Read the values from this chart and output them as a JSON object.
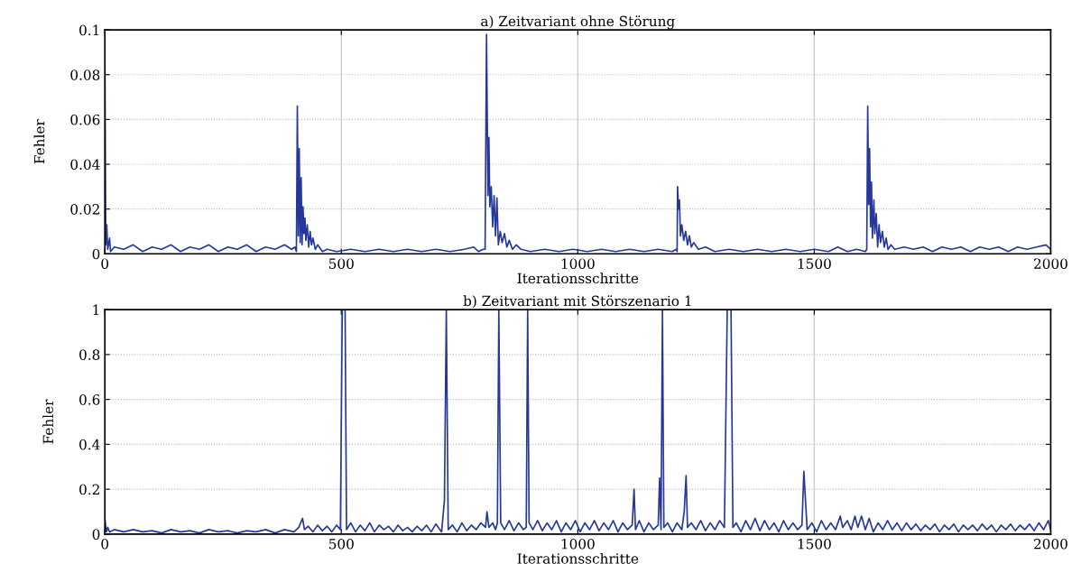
{
  "chart_data": [
    {
      "type": "line",
      "title": "a) Zeitvariant ohne Störung",
      "xlabel": "Iterationsschritte",
      "ylabel": "Fehler",
      "xlim": [
        0,
        2000
      ],
      "xticks": [
        0,
        500,
        1000,
        1500,
        2000
      ],
      "ylim": [
        0,
        0.1
      ],
      "yticks": [
        0,
        0.02,
        0.04,
        0.06,
        0.08,
        0.1
      ],
      "grid": true,
      "x": [
        0,
        2,
        4,
        6,
        10,
        12,
        20,
        40,
        60,
        80,
        100,
        120,
        140,
        160,
        180,
        200,
        220,
        240,
        260,
        280,
        300,
        320,
        340,
        360,
        380,
        395,
        402,
        405,
        407,
        409,
        411,
        413,
        415,
        417,
        419,
        421,
        423,
        425,
        428,
        431,
        434,
        437,
        440,
        445,
        450,
        460,
        470,
        490,
        520,
        550,
        580,
        610,
        640,
        670,
        700,
        730,
        760,
        780,
        790,
        800,
        804,
        807,
        810,
        812,
        814,
        817,
        820,
        823,
        826,
        829,
        832,
        836,
        840,
        845,
        850,
        855,
        862,
        870,
        880,
        900,
        930,
        960,
        990,
        1020,
        1050,
        1080,
        1110,
        1140,
        1170,
        1200,
        1208,
        1210,
        1211,
        1213,
        1215,
        1217,
        1220,
        1224,
        1228,
        1232,
        1236,
        1240,
        1245,
        1255,
        1270,
        1290,
        1320,
        1350,
        1380,
        1410,
        1440,
        1470,
        1500,
        1530,
        1550,
        1570,
        1590,
        1608,
        1611,
        1613,
        1615,
        1617,
        1619,
        1621,
        1623,
        1626,
        1628,
        1631,
        1634,
        1637,
        1640,
        1644,
        1648,
        1652,
        1656,
        1662,
        1670,
        1690,
        1710,
        1730,
        1750,
        1770,
        1790,
        1810,
        1830,
        1850,
        1870,
        1890,
        1910,
        1930,
        1950,
        1970,
        1990,
        2000
      ],
      "series": [
        {
          "color": "#26379b",
          "values": [
            0.085,
            0.004,
            0.013,
            0.002,
            0.007,
            0.001,
            0.003,
            0.002,
            0.004,
            0.001,
            0.003,
            0.002,
            0.004,
            0.001,
            0.003,
            0.002,
            0.004,
            0.001,
            0.003,
            0.002,
            0.004,
            0.001,
            0.003,
            0.002,
            0.004,
            0.002,
            0.003,
            0.001,
            0.066,
            0.008,
            0.047,
            0.005,
            0.034,
            0.004,
            0.021,
            0.009,
            0.016,
            0.006,
            0.013,
            0.003,
            0.01,
            0.004,
            0.007,
            0.002,
            0.004,
            0.001,
            0.002,
            0.001,
            0.002,
            0.001,
            0.002,
            0.001,
            0.002,
            0.001,
            0.002,
            0.001,
            0.002,
            0.003,
            0.001,
            0.002,
            0.002,
            0.098,
            0.026,
            0.052,
            0.021,
            0.03,
            0.012,
            0.026,
            0.008,
            0.025,
            0.004,
            0.01,
            0.005,
            0.009,
            0.003,
            0.006,
            0.002,
            0.004,
            0.002,
            0.001,
            0.002,
            0.001,
            0.002,
            0.001,
            0.002,
            0.001,
            0.002,
            0.001,
            0.002,
            0.001,
            0.002,
            0.001,
            0.03,
            0.02,
            0.024,
            0.008,
            0.013,
            0.006,
            0.01,
            0.004,
            0.008,
            0.003,
            0.005,
            0.002,
            0.003,
            0.001,
            0.002,
            0.001,
            0.002,
            0.001,
            0.002,
            0.001,
            0.002,
            0.001,
            0.003,
            0.001,
            0.002,
            0.001,
            0.002,
            0.066,
            0.022,
            0.047,
            0.012,
            0.032,
            0.007,
            0.024,
            0.009,
            0.018,
            0.003,
            0.013,
            0.005,
            0.01,
            0.003,
            0.007,
            0.002,
            0.004,
            0.002,
            0.003,
            0.002,
            0.003,
            0.001,
            0.003,
            0.002,
            0.003,
            0.001,
            0.003,
            0.002,
            0.003,
            0.001,
            0.003,
            0.002,
            0.003,
            0.004,
            0.002
          ]
        }
      ]
    },
    {
      "type": "line",
      "title": "b) Zeitvariant mit Störszenario 1",
      "xlabel": "Iterationsschritte",
      "ylabel": "Fehler",
      "xlim": [
        0,
        2000
      ],
      "xticks": [
        0,
        500,
        1000,
        1500,
        2000
      ],
      "ylim": [
        0,
        1
      ],
      "yticks": [
        0,
        0.2,
        0.4,
        0.6,
        0.8,
        1
      ],
      "grid": true,
      "x": [
        0,
        3,
        6,
        10,
        20,
        40,
        60,
        80,
        100,
        120,
        140,
        160,
        180,
        200,
        220,
        240,
        260,
        280,
        300,
        320,
        340,
        360,
        380,
        400,
        410,
        418,
        422,
        430,
        440,
        450,
        460,
        470,
        480,
        490,
        498,
        502,
        505,
        508,
        511,
        520,
        530,
        540,
        550,
        560,
        570,
        580,
        590,
        600,
        610,
        620,
        630,
        640,
        650,
        660,
        670,
        680,
        690,
        700,
        712,
        718,
        722,
        726,
        735,
        745,
        755,
        765,
        775,
        785,
        795,
        805,
        808,
        812,
        820,
        826,
        830,
        833,
        837,
        845,
        855,
        865,
        875,
        885,
        891,
        894,
        897,
        905,
        915,
        925,
        935,
        945,
        955,
        965,
        975,
        985,
        995,
        1005,
        1015,
        1025,
        1035,
        1045,
        1055,
        1065,
        1075,
        1085,
        1095,
        1105,
        1115,
        1119,
        1122,
        1130,
        1140,
        1150,
        1160,
        1170,
        1173,
        1176,
        1179,
        1182,
        1190,
        1200,
        1210,
        1220,
        1225,
        1229,
        1232,
        1240,
        1250,
        1260,
        1270,
        1280,
        1290,
        1300,
        1310,
        1316,
        1320,
        1324,
        1328,
        1335,
        1345,
        1355,
        1365,
        1375,
        1385,
        1395,
        1405,
        1415,
        1425,
        1435,
        1445,
        1455,
        1465,
        1474,
        1478,
        1482,
        1485,
        1495,
        1505,
        1515,
        1525,
        1535,
        1545,
        1555,
        1560,
        1570,
        1578,
        1586,
        1592,
        1600,
        1608,
        1616,
        1625,
        1635,
        1645,
        1655,
        1665,
        1675,
        1685,
        1695,
        1705,
        1715,
        1725,
        1735,
        1745,
        1755,
        1765,
        1775,
        1785,
        1795,
        1805,
        1815,
        1825,
        1835,
        1845,
        1855,
        1865,
        1875,
        1885,
        1895,
        1905,
        1915,
        1925,
        1935,
        1945,
        1955,
        1965,
        1975,
        1985,
        1995,
        2000
      ],
      "series": [
        {
          "color": "#26379b",
          "values": [
            0.07,
            0.01,
            0.03,
            0.01,
            0.02,
            0.01,
            0.02,
            0.01,
            0.015,
            0.005,
            0.02,
            0.01,
            0.015,
            0.005,
            0.02,
            0.01,
            0.015,
            0.005,
            0.015,
            0.01,
            0.02,
            0.005,
            0.02,
            0.01,
            0.03,
            0.07,
            0.02,
            0.035,
            0.01,
            0.04,
            0.015,
            0.035,
            0.01,
            0.04,
            0.02,
            1,
            1,
            1,
            0.02,
            0.05,
            0.01,
            0.04,
            0.015,
            0.05,
            0.01,
            0.04,
            0.02,
            0.035,
            0.01,
            0.04,
            0.015,
            0.03,
            0.01,
            0.035,
            0.015,
            0.04,
            0.01,
            0.045,
            0.01,
            0.15,
            1,
            0.02,
            0.04,
            0.01,
            0.05,
            0.015,
            0.04,
            0.02,
            0.05,
            0.03,
            0.1,
            0.03,
            0.05,
            0.02,
            0.05,
            1,
            0.05,
            0.02,
            0.06,
            0.015,
            0.05,
            0.02,
            0.03,
            1,
            0.05,
            0.02,
            0.06,
            0.015,
            0.05,
            0.02,
            0.06,
            0.01,
            0.05,
            0.02,
            0.06,
            0.01,
            0.05,
            0.02,
            0.06,
            0.015,
            0.05,
            0.02,
            0.06,
            0.01,
            0.05,
            0.02,
            0.04,
            0.2,
            0.02,
            0.06,
            0.01,
            0.05,
            0.02,
            0.04,
            0.25,
            0.02,
            1,
            0.03,
            0.05,
            0.01,
            0.05,
            0.02,
            0.1,
            0.26,
            0.03,
            0.05,
            0.02,
            0.06,
            0.015,
            0.05,
            0.02,
            0.06,
            0.03,
            1,
            1,
            1,
            0.03,
            0.05,
            0.01,
            0.06,
            0.02,
            0.07,
            0.015,
            0.06,
            0.02,
            0.05,
            0.01,
            0.06,
            0.02,
            0.05,
            0.02,
            0.04,
            0.28,
            0.13,
            0.02,
            0.05,
            0.01,
            0.06,
            0.02,
            0.05,
            0.02,
            0.08,
            0.03,
            0.06,
            0.02,
            0.08,
            0.03,
            0.08,
            0.02,
            0.07,
            0.01,
            0.05,
            0.02,
            0.06,
            0.02,
            0.05,
            0.015,
            0.05,
            0.02,
            0.045,
            0.015,
            0.04,
            0.02,
            0.045,
            0.01,
            0.04,
            0.02,
            0.045,
            0.01,
            0.04,
            0.02,
            0.04,
            0.015,
            0.045,
            0.02,
            0.04,
            0.01,
            0.04,
            0.02,
            0.045,
            0.015,
            0.04,
            0.02,
            0.045,
            0.015,
            0.05,
            0.02,
            0.06,
            0.02
          ]
        }
      ]
    }
  ]
}
